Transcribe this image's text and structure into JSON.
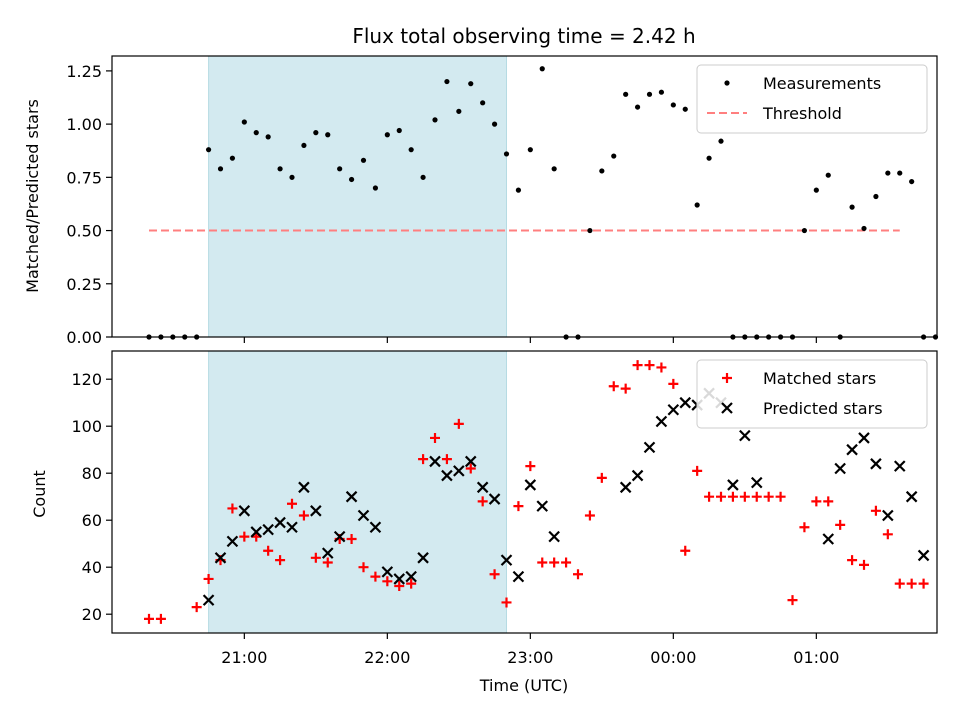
{
  "chart_data": [
    {
      "type": "scatter",
      "title": "Flux total observing time = 2.42 h",
      "ylabel": "Matched/Predicted stars",
      "xlabel": "",
      "x_tick_labels": [],
      "ylim": [
        0,
        1.32
      ],
      "y_ticks": [
        "0.00",
        "0.25",
        "0.50",
        "0.75",
        "1.00",
        "1.25"
      ],
      "shaded_span": {
        "start": "20:45",
        "end": "22:50",
        "color": "#d3eaf0"
      },
      "legend": {
        "location": "upper right"
      },
      "threshold": {
        "name": "Threshold",
        "value": 0.5,
        "x_start": "20:20",
        "x_end": "01:35",
        "color": "#ff7f7f",
        "style": "dashed"
      },
      "series": [
        {
          "name": "Measurements",
          "color": "#000000",
          "marker": "dot",
          "points": [
            [
              "20:20",
              0.0
            ],
            [
              "20:25",
              0.0
            ],
            [
              "20:30",
              0.0
            ],
            [
              "20:35",
              0.0
            ],
            [
              "20:40",
              0.0
            ],
            [
              "20:45",
              0.88
            ],
            [
              "20:50",
              0.79
            ],
            [
              "20:55",
              0.84
            ],
            [
              "21:00",
              1.01
            ],
            [
              "21:05",
              0.96
            ],
            [
              "21:10",
              0.94
            ],
            [
              "21:15",
              0.79
            ],
            [
              "21:20",
              0.75
            ],
            [
              "21:25",
              0.9
            ],
            [
              "21:30",
              0.96
            ],
            [
              "21:35",
              0.95
            ],
            [
              "21:40",
              0.79
            ],
            [
              "21:45",
              0.74
            ],
            [
              "21:50",
              0.83
            ],
            [
              "21:55",
              0.7
            ],
            [
              "22:00",
              0.95
            ],
            [
              "22:05",
              0.97
            ],
            [
              "22:10",
              0.88
            ],
            [
              "22:15",
              0.75
            ],
            [
              "22:20",
              1.02
            ],
            [
              "22:25",
              1.2
            ],
            [
              "22:30",
              1.06
            ],
            [
              "22:35",
              1.19
            ],
            [
              "22:40",
              1.1
            ],
            [
              "22:45",
              1.0
            ],
            [
              "22:50",
              0.86
            ],
            [
              "22:55",
              0.69
            ],
            [
              "23:00",
              0.88
            ],
            [
              "23:05",
              1.26
            ],
            [
              "23:10",
              0.79
            ],
            [
              "23:15",
              0.0
            ],
            [
              "23:20",
              0.0
            ],
            [
              "23:25",
              0.5
            ],
            [
              "23:30",
              0.78
            ],
            [
              "23:35",
              0.85
            ],
            [
              "23:40",
              1.14
            ],
            [
              "23:45",
              1.08
            ],
            [
              "23:50",
              1.14
            ],
            [
              "23:55",
              1.15
            ],
            [
              "00:00",
              1.09
            ],
            [
              "00:05",
              1.07
            ],
            [
              "00:10",
              0.62
            ],
            [
              "00:15",
              0.84
            ],
            [
              "00:20",
              0.92
            ],
            [
              "00:25",
              0.0
            ],
            [
              "00:30",
              0.0
            ],
            [
              "00:35",
              0.0
            ],
            [
              "00:40",
              0.0
            ],
            [
              "00:45",
              0.0
            ],
            [
              "00:50",
              0.0
            ],
            [
              "00:55",
              0.5
            ],
            [
              "01:00",
              0.69
            ],
            [
              "01:05",
              0.76
            ],
            [
              "01:10",
              0.0
            ],
            [
              "01:15",
              0.61
            ],
            [
              "01:20",
              0.51
            ],
            [
              "01:25",
              0.66
            ],
            [
              "01:30",
              0.77
            ],
            [
              "01:35",
              0.77
            ],
            [
              "01:40",
              0.73
            ],
            [
              "01:45",
              0.0
            ],
            [
              "01:50",
              0.0
            ]
          ]
        }
      ]
    },
    {
      "type": "scatter",
      "title": "",
      "ylabel": "Count",
      "xlabel": "Time (UTC)",
      "x_tick_labels": [
        "21:00",
        "22:00",
        "23:00",
        "00:00",
        "01:00"
      ],
      "ylim": [
        12,
        132
      ],
      "y_ticks": [
        "20",
        "40",
        "60",
        "80",
        "100",
        "120"
      ],
      "shaded_span": {
        "start": "20:45",
        "end": "22:50",
        "color": "#d3eaf0"
      },
      "legend": {
        "location": "upper right"
      },
      "series": [
        {
          "name": "Matched stars",
          "color": "#ff0000",
          "marker": "plus",
          "points": [
            [
              "20:20",
              18
            ],
            [
              "20:25",
              18
            ],
            [
              "20:40",
              23
            ],
            [
              "20:45",
              35
            ],
            [
              "20:50",
              43
            ],
            [
              "20:55",
              65
            ],
            [
              "21:00",
              53
            ],
            [
              "21:05",
              53
            ],
            [
              "21:10",
              47
            ],
            [
              "21:15",
              43
            ],
            [
              "21:20",
              67
            ],
            [
              "21:25",
              62
            ],
            [
              "21:30",
              44
            ],
            [
              "21:35",
              42
            ],
            [
              "21:40",
              52
            ],
            [
              "21:45",
              52
            ],
            [
              "21:50",
              40
            ],
            [
              "21:55",
              36
            ],
            [
              "22:00",
              34
            ],
            [
              "22:05",
              32
            ],
            [
              "22:10",
              33
            ],
            [
              "22:15",
              86
            ],
            [
              "22:20",
              95
            ],
            [
              "22:25",
              86
            ],
            [
              "22:30",
              101
            ],
            [
              "22:35",
              82
            ],
            [
              "22:40",
              68
            ],
            [
              "22:45",
              37
            ],
            [
              "22:50",
              25
            ],
            [
              "22:55",
              66
            ],
            [
              "23:00",
              83
            ],
            [
              "23:05",
              42
            ],
            [
              "23:10",
              42
            ],
            [
              "23:15",
              42
            ],
            [
              "23:20",
              37
            ],
            [
              "23:25",
              62
            ],
            [
              "23:30",
              78
            ],
            [
              "23:35",
              117
            ],
            [
              "23:40",
              116
            ],
            [
              "23:45",
              126
            ],
            [
              "23:50",
              126
            ],
            [
              "23:55",
              125
            ],
            [
              "00:00",
              118
            ],
            [
              "00:05",
              47
            ],
            [
              "00:10",
              81
            ],
            [
              "00:15",
              70
            ],
            [
              "00:20",
              70
            ],
            [
              "00:25",
              70
            ],
            [
              "00:30",
              70
            ],
            [
              "00:35",
              70
            ],
            [
              "00:40",
              70
            ],
            [
              "00:45",
              70
            ],
            [
              "00:50",
              26
            ],
            [
              "00:55",
              57
            ],
            [
              "01:00",
              68
            ],
            [
              "01:05",
              68
            ],
            [
              "01:10",
              58
            ],
            [
              "01:15",
              43
            ],
            [
              "01:20",
              41
            ],
            [
              "01:25",
              64
            ],
            [
              "01:30",
              54
            ],
            [
              "01:35",
              33
            ],
            [
              "01:40",
              33
            ],
            [
              "01:45",
              33
            ]
          ]
        },
        {
          "name": "Predicted stars",
          "color": "#000000",
          "marker": "x",
          "points": [
            [
              "20:45",
              26
            ],
            [
              "20:50",
              44
            ],
            [
              "20:55",
              51
            ],
            [
              "21:00",
              64
            ],
            [
              "21:05",
              55
            ],
            [
              "21:10",
              56
            ],
            [
              "21:15",
              59
            ],
            [
              "21:20",
              57
            ],
            [
              "21:25",
              74
            ],
            [
              "21:30",
              64
            ],
            [
              "21:35",
              46
            ],
            [
              "21:40",
              53
            ],
            [
              "21:45",
              70
            ],
            [
              "21:50",
              62
            ],
            [
              "21:55",
              57
            ],
            [
              "22:00",
              38
            ],
            [
              "22:05",
              35
            ],
            [
              "22:10",
              36
            ],
            [
              "22:15",
              44
            ],
            [
              "22:20",
              85
            ],
            [
              "22:25",
              79
            ],
            [
              "22:30",
              81
            ],
            [
              "22:35",
              85
            ],
            [
              "22:40",
              74
            ],
            [
              "22:45",
              69
            ],
            [
              "22:50",
              43
            ],
            [
              "22:55",
              36
            ],
            [
              "23:00",
              75
            ],
            [
              "23:05",
              66
            ],
            [
              "23:10",
              53
            ],
            [
              "23:40",
              74
            ],
            [
              "23:45",
              79
            ],
            [
              "23:50",
              91
            ],
            [
              "23:55",
              102
            ],
            [
              "00:00",
              107
            ],
            [
              "00:05",
              110
            ],
            [
              "00:10",
              109
            ],
            [
              "00:15",
              114
            ],
            [
              "00:20",
              110
            ],
            [
              "00:25",
              75
            ],
            [
              "00:30",
              96
            ],
            [
              "00:35",
              76
            ],
            [
              "01:05",
              52
            ],
            [
              "01:10",
              82
            ],
            [
              "01:15",
              90
            ],
            [
              "01:20",
              95
            ],
            [
              "01:25",
              84
            ],
            [
              "01:30",
              62
            ],
            [
              "01:35",
              83
            ],
            [
              "01:40",
              70
            ],
            [
              "01:45",
              45
            ]
          ]
        }
      ]
    }
  ]
}
